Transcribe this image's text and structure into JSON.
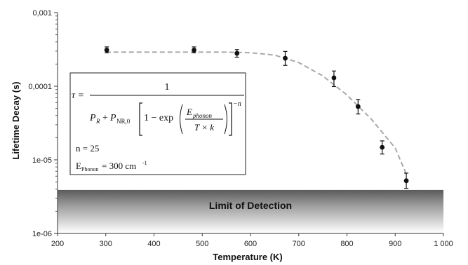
{
  "chart_data": {
    "type": "scatter",
    "xlabel": "Temperature (K)",
    "ylabel": "Lifetime Decay (s)",
    "xlim": [
      200,
      1000
    ],
    "ylim": [
      1e-06,
      0.001
    ],
    "yscale": "log",
    "x_ticks": [
      200,
      300,
      400,
      500,
      600,
      700,
      800,
      900,
      1000
    ],
    "x_tick_labels": [
      "200",
      "300",
      "400",
      "500",
      "600",
      "700",
      "800",
      "900",
      "1 000"
    ],
    "y_tick_labels": [
      "1e-06",
      "1e-05",
      "0,0001",
      "0,001"
    ],
    "points": [
      {
        "x": 302,
        "y": 0.00031,
        "err_low": 2.6e-05,
        "err_high": 3.2e-05
      },
      {
        "x": 483,
        "y": 0.00031,
        "err_low": 2.6e-05,
        "err_high": 3.2e-05
      },
      {
        "x": 572,
        "y": 0.00028,
        "err_low": 3.2e-05,
        "err_high": 3.4e-05
      },
      {
        "x": 672,
        "y": 0.00024,
        "err_low": 4.8e-05,
        "err_high": 5.7e-05
      },
      {
        "x": 773,
        "y": 0.00013,
        "err_low": 3.1e-05,
        "err_high": 3.1e-05
      },
      {
        "x": 823,
        "y": 5.3e-05,
        "err_low": 1.1e-05,
        "err_high": 1.3e-05
      },
      {
        "x": 873,
        "y": 1.48e-05,
        "err_low": 2.8e-06,
        "err_high": 3.3e-06
      },
      {
        "x": 923,
        "y": 5.2e-06,
        "err_low": 1.1e-06,
        "err_high": 1.4e-06
      }
    ],
    "fit_curve": {
      "style": "dashed",
      "x": [
        300,
        400,
        500,
        550,
        600,
        650,
        700,
        750,
        800,
        850,
        900,
        923
      ],
      "y": [
        0.00029,
        0.00029,
        0.00029,
        0.00029,
        0.000285,
        0.000265,
        0.00021,
        0.000138,
        7.6e-05,
        3.6e-05,
        1.45e-05,
        6.4e-06
      ]
    },
    "shaded_band": {
      "label": "Limit of Detection",
      "y_range": [
        1e-06,
        3.9e-06
      ]
    },
    "annotation": {
      "equation_tau": "τ =",
      "equation_numerator": "1",
      "equation_pr": "P",
      "equation_pr_sub": "R",
      "equation_plus": "+",
      "equation_pnr": "P",
      "equation_pnr_sub": "NR,0",
      "equation_one_minus_exp": "1 − exp",
      "equation_ephonon": "E",
      "equation_ephonon_sub": "phonon",
      "equation_tk": "T × k",
      "equation_exponent": "−n",
      "n_value": "n = 25",
      "ephonon_label": "E",
      "ephonon_label_sub": "Phonon",
      "ephonon_value": "= 300 cm",
      "ephonon_unit_sup": "-1"
    },
    "colors": {
      "points": "#111111",
      "fit": "#a9a9a9",
      "band_top": "#5a5a5a",
      "band_bottom": "#ffffff"
    }
  }
}
